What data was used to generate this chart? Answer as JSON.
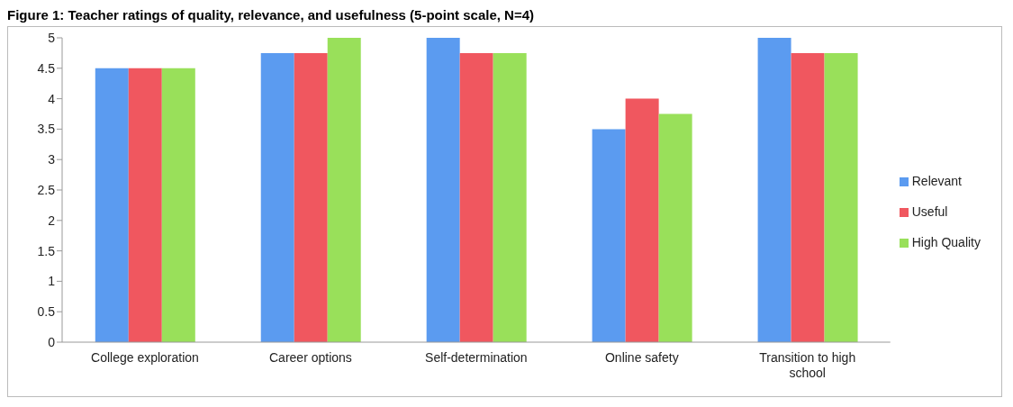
{
  "chart_data": {
    "type": "bar",
    "title": "Figure 1: Teacher ratings of quality, relevance, and usefulness (5-point scale, N=4)",
    "categories": [
      "College exploration",
      "Career options",
      "Self-determination",
      "Online safety",
      "Transition to high school"
    ],
    "series": [
      {
        "name": "Relevant",
        "color": "#5b9bf0",
        "values": [
          4.5,
          4.75,
          5,
          3.5,
          5
        ]
      },
      {
        "name": "Useful",
        "color": "#f0575f",
        "values": [
          4.5,
          4.75,
          4.75,
          4,
          4.75
        ]
      },
      {
        "name": "High Quality",
        "color": "#99e05a",
        "values": [
          4.5,
          5,
          4.75,
          3.75,
          4.75
        ]
      }
    ],
    "ylim": [
      0,
      5
    ],
    "yticks": [
      0,
      0.5,
      1,
      1.5,
      2,
      2.5,
      3,
      3.5,
      4,
      4.5,
      5
    ],
    "grid": false,
    "legend": "right"
  }
}
